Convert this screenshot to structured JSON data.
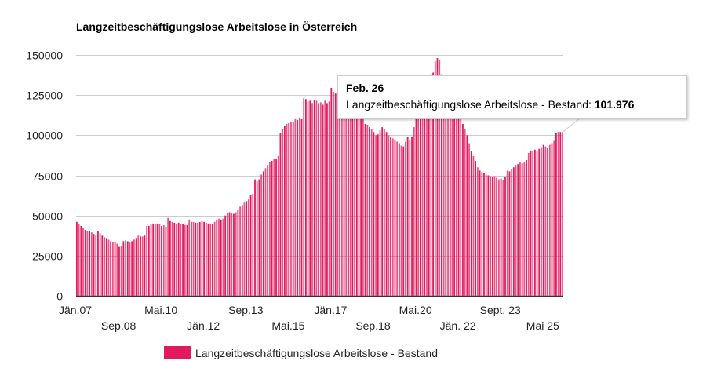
{
  "chart_data": {
    "type": "bar",
    "title": "Langzeitbeschäftigungslose Arbeitslose in Österreich",
    "xlabel": "",
    "ylabel": "",
    "ylim": [
      0,
      150000
    ],
    "yticks": [
      "0",
      "25000",
      "50000",
      "75000",
      "100000",
      "125000",
      "150000"
    ],
    "ytick_values": [
      0,
      25000,
      50000,
      75000,
      100000,
      125000,
      150000
    ],
    "grid": true,
    "legend_position": "bottom",
    "x_start": "Jän.07",
    "x_end": "Feb. 26",
    "xtick_labels": [
      {
        "label": "Jän.07",
        "index": 0
      },
      {
        "label": "Sep.08",
        "index": 20
      },
      {
        "label": "Mai.10",
        "index": 40
      },
      {
        "label": "Jän.12",
        "index": 60
      },
      {
        "label": "Sep.13",
        "index": 80
      },
      {
        "label": "Mai.15",
        "index": 100
      },
      {
        "label": "Jän.17",
        "index": 120
      },
      {
        "label": "Sep.18",
        "index": 140
      },
      {
        "label": "Mai.20",
        "index": 160
      },
      {
        "label": "Jän. 22",
        "index": 180
      },
      {
        "label": "Sept. 23",
        "index": 200
      },
      {
        "label": "Mai 25",
        "index": 220
      }
    ],
    "series": [
      {
        "name": "Langzeitbeschäftigungslose Arbeitslose - Bestand",
        "color": "#e2195c",
        "values": [
          46000,
          44500,
          43500,
          42000,
          41000,
          40500,
          40500,
          39500,
          38500,
          37500,
          40500,
          39000,
          37500,
          36500,
          36000,
          35000,
          34000,
          33500,
          33500,
          32500,
          30500,
          31000,
          34000,
          34500,
          34000,
          33500,
          34000,
          35000,
          36000,
          37500,
          37000,
          37000,
          37500,
          43500,
          43500,
          44500,
          45000,
          44500,
          45000,
          44500,
          43500,
          44000,
          43000,
          48500,
          46500,
          46000,
          45500,
          45000,
          45500,
          45000,
          44500,
          44000,
          44000,
          47500,
          46000,
          46000,
          45500,
          45500,
          46000,
          46500,
          46000,
          45500,
          45000,
          45000,
          44500,
          46000,
          47500,
          48000,
          47500,
          48000,
          50000,
          51500,
          52000,
          51500,
          51000,
          52000,
          53500,
          55500,
          56500,
          58000,
          59000,
          60000,
          62500,
          63500,
          72500,
          71500,
          72500,
          75500,
          77500,
          79500,
          81500,
          83500,
          84000,
          85500,
          85000,
          87000,
          101500,
          104000,
          106000,
          107000,
          107500,
          108000,
          108500,
          110000,
          109500,
          110500,
          110000,
          123000,
          122500,
          121000,
          121500,
          120000,
          122000,
          121500,
          120000,
          120500,
          119000,
          121500,
          120000,
          121000,
          129500,
          127000,
          126000,
          122000,
          120000,
          119000,
          118000,
          117000,
          116000,
          117000,
          118000,
          119000,
          118000,
          116000,
          113000,
          110000,
          107000,
          106500,
          105000,
          104000,
          102000,
          100000,
          100500,
          103000,
          105000,
          104000,
          102000,
          100000,
          99000,
          98000,
          97000,
          96000,
          95000,
          93500,
          93000,
          96000,
          99000,
          97000,
          99000,
          105000,
          118000,
          122000,
          124000,
          126000,
          128000,
          131000,
          134000,
          138000,
          139000,
          146000,
          148000,
          147000,
          138000,
          132000,
          127000,
          124000,
          121000,
          118000,
          116000,
          114000,
          112000,
          110000,
          107000,
          104000,
          100000,
          95000,
          90000,
          87000,
          84000,
          80000,
          78000,
          77000,
          76500,
          75500,
          75000,
          74500,
          74000,
          74500,
          73500,
          72500,
          73000,
          72000,
          74000,
          78000,
          77500,
          79000,
          80000,
          81500,
          82000,
          83000,
          82500,
          83000,
          84500,
          89000,
          90500,
          90000,
          91000,
          90500,
          91500,
          92500,
          94000,
          93000,
          92000,
          94000,
          95000,
          96500,
          101500,
          102000,
          102000,
          101976
        ]
      }
    ]
  },
  "tooltip": {
    "title": "Feb. 26",
    "label": "Langzeitbeschäftigungslose Arbeitslose - Bestand: ",
    "value": "101.976"
  },
  "legend": {
    "label": "Langzeitbeschäftigungslose Arbeitslose - Bestand",
    "color": "#e2195c"
  }
}
